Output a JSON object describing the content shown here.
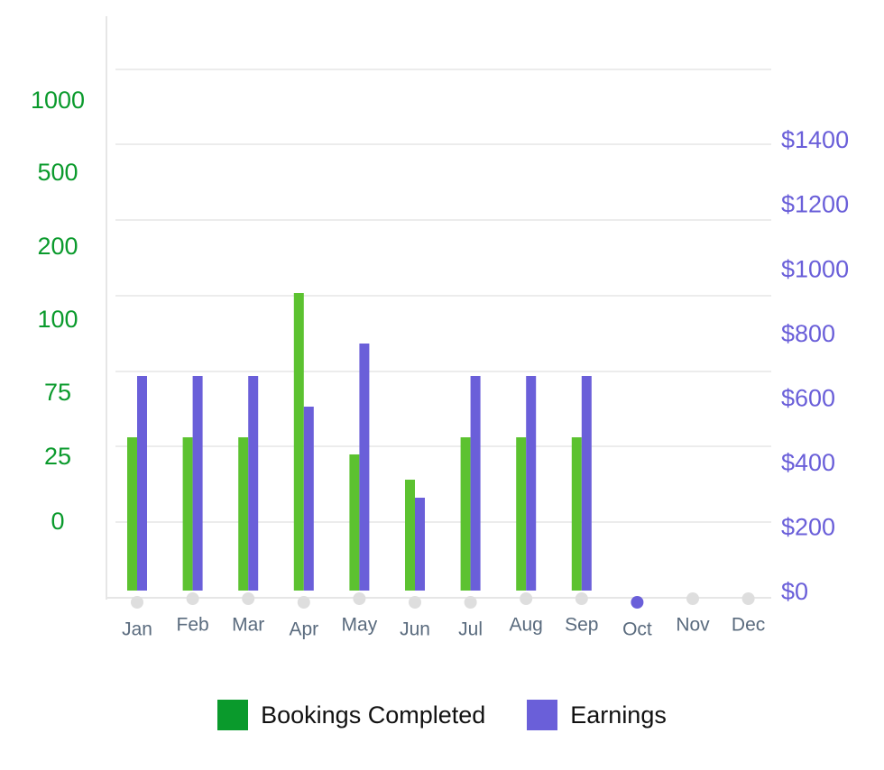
{
  "chart_data": {
    "type": "bar",
    "categories": [
      "Jan",
      "Feb",
      "Mar",
      "Apr",
      "May",
      "Jun",
      "Jul",
      "Aug",
      "Sep",
      "Oct",
      "Nov",
      "Dec"
    ],
    "selected_category": "Oct",
    "series": [
      {
        "name": "Bookings Completed",
        "axis": "left",
        "color": "#0a9a2c",
        "bar_color": "#5cc230",
        "values": [
          50,
          50,
          50,
          150,
          40,
          30,
          50,
          50,
          50,
          null,
          null,
          null
        ]
      },
      {
        "name": "Earnings",
        "axis": "right",
        "color": "#6a5fd9",
        "bar_color": "#6a5fd9",
        "values": [
          680,
          680,
          680,
          590,
          780,
          310,
          680,
          680,
          680,
          null,
          null,
          null
        ]
      }
    ],
    "left_axis": {
      "scale": "custom-nonlinear",
      "ticks": [
        {
          "value": 0,
          "label": "0"
        },
        {
          "value": 25,
          "label": "25"
        },
        {
          "value": 75,
          "label": "75"
        },
        {
          "value": 100,
          "label": "100"
        },
        {
          "value": 200,
          "label": "200"
        },
        {
          "value": 500,
          "label": "500"
        },
        {
          "value": 1000,
          "label": "1000"
        }
      ]
    },
    "right_axis": {
      "range": [
        0,
        1400
      ],
      "ticks": [
        {
          "value": 0,
          "label": "$0"
        },
        {
          "value": 200,
          "label": "$200"
        },
        {
          "value": 400,
          "label": "$400"
        },
        {
          "value": 600,
          "label": "$600"
        },
        {
          "value": 800,
          "label": "$800"
        },
        {
          "value": 1000,
          "label": "$1000"
        },
        {
          "value": 1200,
          "label": "$1200"
        },
        {
          "value": 1400,
          "label": "$1400"
        }
      ]
    },
    "grid": true,
    "legend_position": "bottom"
  },
  "legend": {
    "items": [
      {
        "label": "Bookings Completed",
        "color": "#0a9a2c"
      },
      {
        "label": "Earnings",
        "color": "#6a5fd9"
      }
    ]
  },
  "colors": {
    "gridline": "#ececec",
    "axis": "#e6e6e6",
    "dot_default": "#dedede",
    "dot_selected": "#6a5fd9",
    "month_label": "#5a6b7e"
  }
}
